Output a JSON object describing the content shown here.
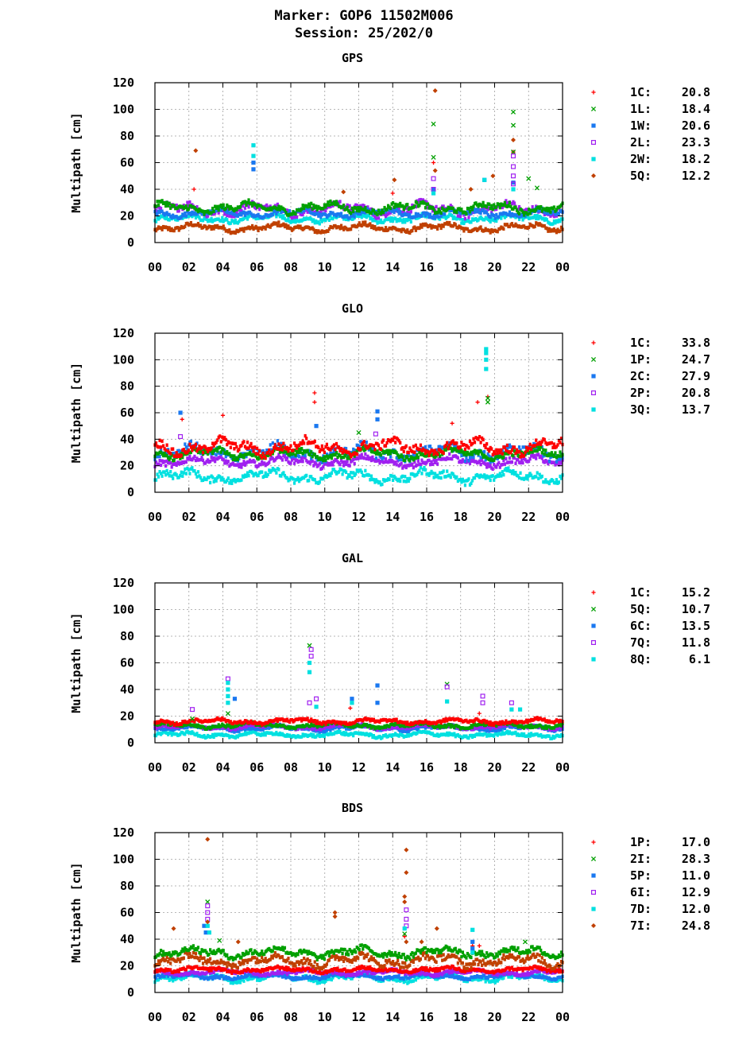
{
  "header": {
    "line1": "Marker: GOP6 11502M006",
    "line2": "Session: 25/202/0"
  },
  "chart_data": [
    {
      "type": "scatter",
      "title": "GPS",
      "ylabel": "Multipath [cm]",
      "xlabel": "",
      "ylim": [
        0,
        120
      ],
      "xlim": [
        0,
        24
      ],
      "x_tick_labels": [
        "00",
        "02",
        "04",
        "06",
        "08",
        "10",
        "12",
        "14",
        "16",
        "18",
        "20",
        "22",
        "00"
      ],
      "y_tick_labels": [
        "0",
        "20",
        "40",
        "60",
        "80",
        "100",
        "120"
      ],
      "grid": true,
      "legend_position": "right",
      "series": [
        {
          "name": "1C: 20.8",
          "color": "#ff0000",
          "marker": "plus",
          "points": [
            [
              2.3,
              40
            ],
            [
              14.0,
              37
            ],
            [
              16.4,
              60
            ],
            [
              21.1,
              68
            ]
          ]
        },
        {
          "name": "1L: 18.4",
          "color": "#00a000",
          "marker": "cross",
          "points": [
            [
              16.4,
              89
            ],
            [
              16.4,
              64
            ],
            [
              21.1,
              98
            ],
            [
              21.1,
              88
            ],
            [
              21.1,
              68
            ],
            [
              22.0,
              48
            ],
            [
              22.5,
              41
            ]
          ]
        },
        {
          "name": "1W: 20.6",
          "color": "#1a78f0",
          "marker": "square",
          "points": [
            [
              5.8,
              60
            ],
            [
              5.8,
              55
            ],
            [
              16.4,
              40
            ],
            [
              19.4,
              47
            ],
            [
              21.1,
              45
            ]
          ]
        },
        {
          "name": "2L: 23.3",
          "color": "#a020f0",
          "marker": "box",
          "points": [
            [
              16.4,
              48
            ],
            [
              16.4,
              40
            ],
            [
              21.1,
              65
            ],
            [
              21.1,
              57
            ],
            [
              21.1,
              50
            ],
            [
              21.1,
              44
            ]
          ]
        },
        {
          "name": "2W: 18.2",
          "color": "#00e0e0",
          "marker": "square",
          "points": [
            [
              5.8,
              73
            ],
            [
              5.8,
              65
            ],
            [
              16.4,
              37
            ],
            [
              19.4,
              47
            ],
            [
              21.1,
              40
            ]
          ]
        },
        {
          "name": "5Q: 12.2",
          "color": "#c04000",
          "marker": "diamond",
          "points": [
            [
              2.4,
              69
            ],
            [
              11.1,
              38
            ],
            [
              14.1,
              47
            ],
            [
              16.5,
              114
            ],
            [
              16.5,
              54
            ],
            [
              18.6,
              40
            ],
            [
              19.9,
              50
            ],
            [
              21.1,
              77
            ]
          ]
        }
      ]
    },
    {
      "type": "scatter",
      "title": "GLO",
      "ylabel": "Multipath [cm]",
      "xlabel": "",
      "ylim": [
        0,
        120
      ],
      "xlim": [
        0,
        24
      ],
      "x_tick_labels": [
        "00",
        "02",
        "04",
        "06",
        "08",
        "10",
        "12",
        "14",
        "16",
        "18",
        "20",
        "22",
        "00"
      ],
      "y_tick_labels": [
        "0",
        "20",
        "40",
        "60",
        "80",
        "100",
        "120"
      ],
      "grid": true,
      "legend_position": "right",
      "series": [
        {
          "name": "1C: 33.8",
          "color": "#ff0000",
          "marker": "plus",
          "points": [
            [
              1.6,
              55
            ],
            [
              4.0,
              58
            ],
            [
              9.4,
              75
            ],
            [
              9.4,
              68
            ],
            [
              17.5,
              52
            ],
            [
              19.0,
              68
            ],
            [
              19.6,
              72
            ]
          ]
        },
        {
          "name": "1P: 24.7",
          "color": "#00a000",
          "marker": "cross",
          "points": [
            [
              19.6,
              71
            ],
            [
              19.6,
              68
            ],
            [
              12.0,
              45
            ]
          ]
        },
        {
          "name": "2C: 27.9",
          "color": "#1a78f0",
          "marker": "square",
          "points": [
            [
              1.5,
              60
            ],
            [
              13.1,
              61
            ],
            [
              13.1,
              55
            ],
            [
              9.5,
              50
            ]
          ]
        },
        {
          "name": "2P: 20.8",
          "color": "#a020f0",
          "marker": "box",
          "points": [
            [
              1.5,
              42
            ],
            [
              13.0,
              44
            ]
          ]
        },
        {
          "name": "3Q: 13.7",
          "color": "#00e0e0",
          "marker": "square",
          "points": [
            [
              19.5,
              108
            ],
            [
              19.5,
              105
            ],
            [
              19.5,
              100
            ],
            [
              19.5,
              93
            ]
          ]
        }
      ]
    },
    {
      "type": "scatter",
      "title": "GAL",
      "ylabel": "Multipath [cm]",
      "xlabel": "",
      "ylim": [
        0,
        120
      ],
      "xlim": [
        0,
        24
      ],
      "x_tick_labels": [
        "00",
        "02",
        "04",
        "06",
        "08",
        "10",
        "12",
        "14",
        "16",
        "18",
        "20",
        "22",
        "00"
      ],
      "y_tick_labels": [
        "0",
        "20",
        "40",
        "60",
        "80",
        "100",
        "120"
      ],
      "grid": true,
      "legend_position": "right",
      "series": [
        {
          "name": "1C: 15.2",
          "color": "#ff0000",
          "marker": "plus",
          "points": [
            [
              11.5,
              26
            ],
            [
              19.1,
              22
            ]
          ]
        },
        {
          "name": "5Q: 10.7",
          "color": "#00a000",
          "marker": "cross",
          "points": [
            [
              9.1,
              73
            ],
            [
              17.2,
              44
            ],
            [
              4.3,
              22
            ],
            [
              2.2,
              18
            ]
          ]
        },
        {
          "name": "6C: 13.5",
          "color": "#1a78f0",
          "marker": "square",
          "points": [
            [
              4.7,
              33
            ],
            [
              13.1,
              43
            ],
            [
              13.1,
              30
            ],
            [
              11.6,
              33
            ]
          ]
        },
        {
          "name": "7Q: 11.8",
          "color": "#a020f0",
          "marker": "box",
          "points": [
            [
              2.2,
              25
            ],
            [
              4.3,
              48
            ],
            [
              9.2,
              70
            ],
            [
              9.2,
              65
            ],
            [
              9.5,
              33
            ],
            [
              17.2,
              42
            ],
            [
              19.3,
              35
            ],
            [
              19.3,
              30
            ],
            [
              21.0,
              30
            ],
            [
              9.1,
              30
            ]
          ]
        },
        {
          "name": "8Q: 6.1",
          "color": "#00e0e0",
          "marker": "square",
          "points": [
            [
              4.3,
              45
            ],
            [
              4.3,
              40
            ],
            [
              4.3,
              35
            ],
            [
              4.3,
              30
            ],
            [
              9.1,
              60
            ],
            [
              9.1,
              53
            ],
            [
              9.5,
              27
            ],
            [
              11.6,
              30
            ],
            [
              17.2,
              31
            ],
            [
              21.0,
              25
            ],
            [
              21.5,
              25
            ]
          ]
        }
      ]
    },
    {
      "type": "scatter",
      "title": "BDS",
      "ylabel": "Multipath [cm]",
      "xlabel": "",
      "ylim": [
        0,
        120
      ],
      "xlim": [
        0,
        24
      ],
      "x_tick_labels": [
        "00",
        "02",
        "04",
        "06",
        "08",
        "10",
        "12",
        "14",
        "16",
        "18",
        "20",
        "22",
        "00"
      ],
      "y_tick_labels": [
        "0",
        "20",
        "40",
        "60",
        "80",
        "100",
        "120"
      ],
      "grid": true,
      "legend_position": "right",
      "series": [
        {
          "name": "1P: 17.0",
          "color": "#ff0000",
          "marker": "plus",
          "points": [
            [
              14.7,
              42
            ],
            [
              18.7,
              35
            ],
            [
              19.1,
              35
            ]
          ]
        },
        {
          "name": "2I: 28.3",
          "color": "#00a000",
          "marker": "cross",
          "points": [
            [
              3.1,
              68
            ],
            [
              3.8,
              39
            ],
            [
              14.7,
              44
            ],
            [
              21.8,
              38
            ]
          ]
        },
        {
          "name": "5P: 11.0",
          "color": "#1a78f0",
          "marker": "square",
          "points": [
            [
              2.9,
              50
            ],
            [
              3.0,
              45
            ],
            [
              18.7,
              38
            ],
            [
              18.7,
              33
            ]
          ]
        },
        {
          "name": "6I: 12.9",
          "color": "#a020f0",
          "marker": "box",
          "points": [
            [
              3.1,
              65
            ],
            [
              3.1,
              60
            ],
            [
              3.1,
              55
            ],
            [
              14.8,
              62
            ],
            [
              14.8,
              55
            ],
            [
              14.8,
              50
            ]
          ]
        },
        {
          "name": "7D: 12.0",
          "color": "#00e0e0",
          "marker": "square",
          "points": [
            [
              3.1,
              50
            ],
            [
              3.2,
              45
            ],
            [
              14.7,
              48
            ],
            [
              18.7,
              47
            ],
            [
              18.7,
              30
            ]
          ]
        },
        {
          "name": "7I: 24.8",
          "color": "#c04000",
          "marker": "diamond",
          "points": [
            [
              3.1,
              115
            ],
            [
              3.1,
              53
            ],
            [
              1.1,
              48
            ],
            [
              4.9,
              38
            ],
            [
              10.6,
              60
            ],
            [
              10.6,
              57
            ],
            [
              14.8,
              107
            ],
            [
              14.8,
              90
            ],
            [
              14.7,
              72
            ],
            [
              14.7,
              68
            ],
            [
              14.8,
              38
            ],
            [
              16.6,
              48
            ],
            [
              15.7,
              38
            ]
          ]
        }
      ]
    }
  ]
}
